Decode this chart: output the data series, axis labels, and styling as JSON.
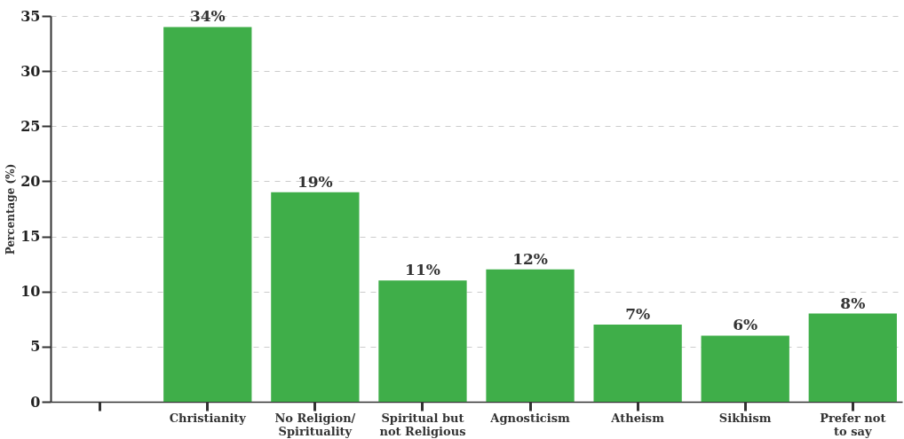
{
  "chart_data": {
    "type": "bar",
    "ylabel": "Percentage (%)",
    "categories": [
      null,
      "Christianity",
      "No Religion/\nSpirituality",
      "Spiritual but\nnot Religious",
      "Agnosticism",
      "Atheism",
      "Sikhism",
      "Prefer not\nto say"
    ],
    "values": [
      null,
      34,
      19,
      11,
      12,
      7,
      6,
      8
    ],
    "value_labels": [
      null,
      "34%",
      "19%",
      "11%",
      "12%",
      "7%",
      "6%",
      "8%"
    ],
    "color": "#3fae49",
    "ylim": [
      0,
      35
    ],
    "yticks": [
      0,
      5,
      10,
      15,
      20,
      25,
      30,
      35
    ],
    "grid": "y"
  }
}
